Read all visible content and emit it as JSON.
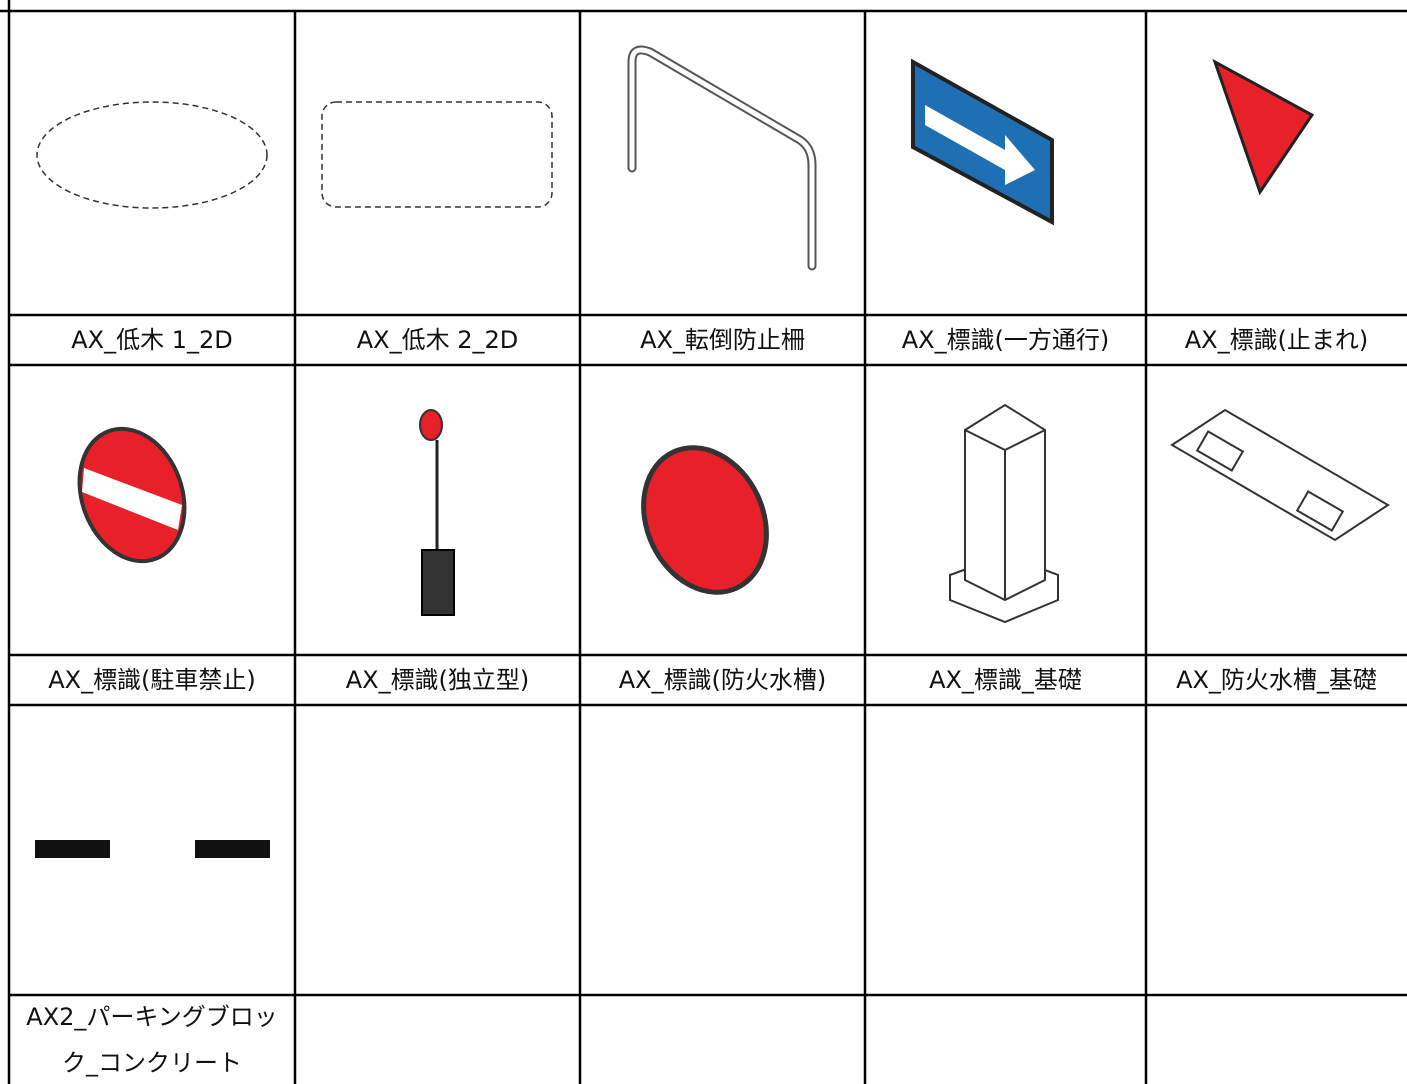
{
  "grid": {
    "items": [
      {
        "label": "AX_低木 1_2D"
      },
      {
        "label": "AX_低木 2_2D"
      },
      {
        "label": "AX_転倒防止柵"
      },
      {
        "label": "AX_標識(一方通行)"
      },
      {
        "label": "AX_標識(止まれ)"
      },
      {
        "label": "AX_標識(駐車禁止)"
      },
      {
        "label": "AX_標識(独立型)"
      },
      {
        "label": "AX_標識(防火水槽)"
      },
      {
        "label": "AX_標識_基礎"
      },
      {
        "label": "AX_防火水槽_基礎"
      },
      {
        "label": "AX2_パーキングブロック_コンクリート"
      }
    ]
  }
}
